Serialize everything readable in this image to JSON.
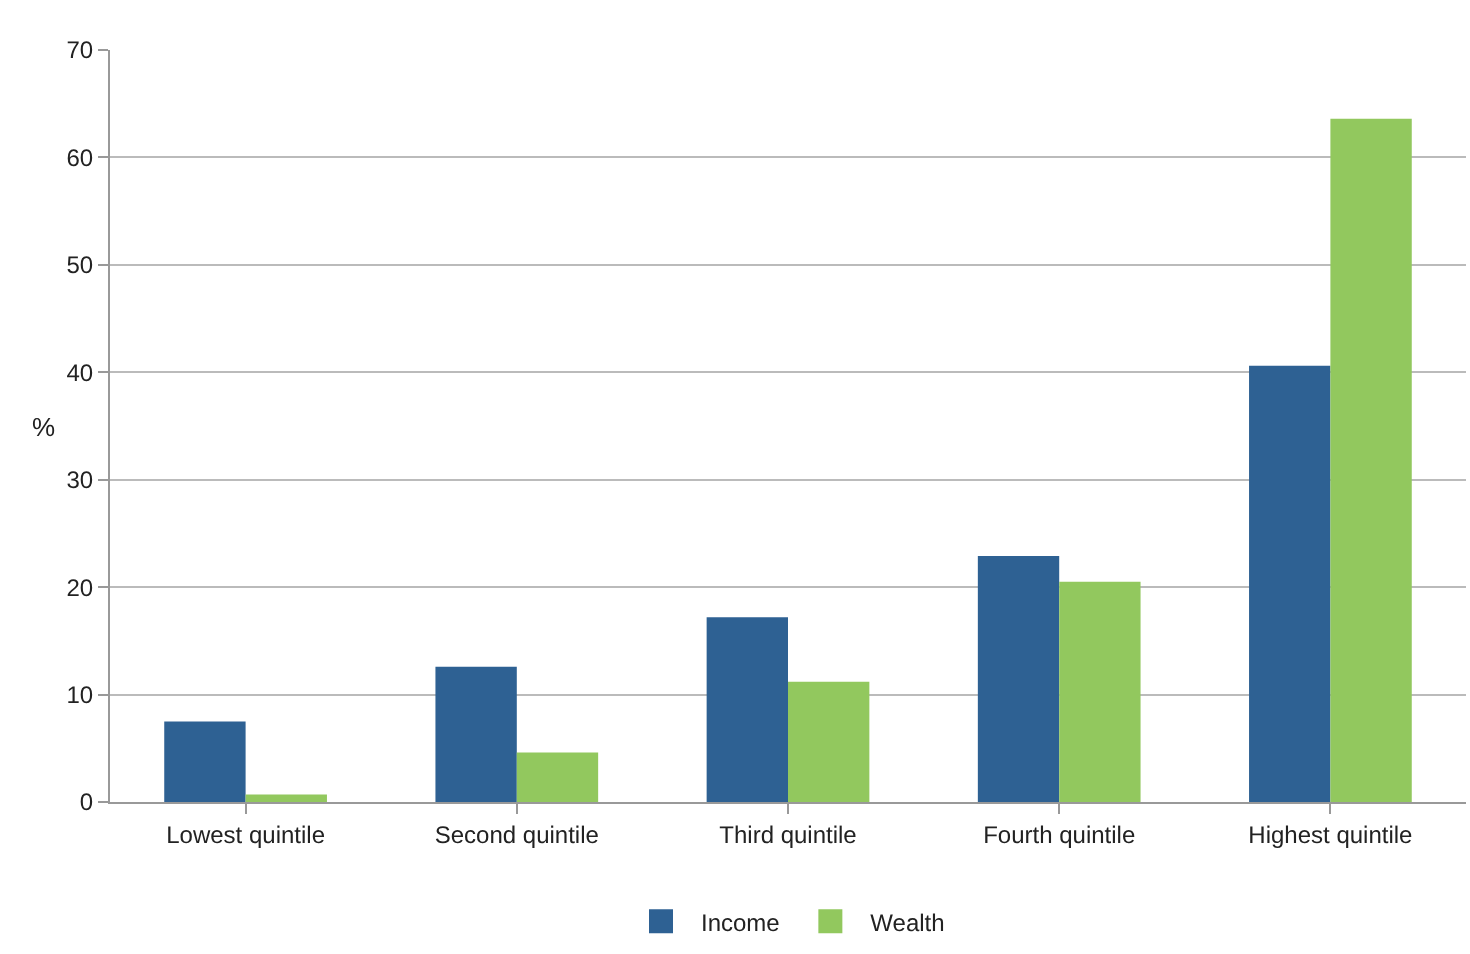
{
  "chart_data": {
    "type": "bar",
    "ylabel": "%",
    "categories": [
      "Lowest quintile",
      "Second quintile",
      "Third quintile",
      "Fourth quintile",
      "Highest quintile"
    ],
    "series": [
      {
        "name": "Income",
        "color": "#2e6193",
        "values": [
          7.5,
          12.6,
          17.2,
          22.9,
          40.6
        ]
      },
      {
        "name": "Wealth",
        "color": "#92c85e",
        "values": [
          0.7,
          4.6,
          11.2,
          20.5,
          63.6
        ]
      }
    ],
    "ylim": [
      0,
      70
    ],
    "yticks": [
      0,
      10,
      20,
      30,
      40,
      50,
      60,
      70
    ],
    "grid": "y",
    "legend": "bottom"
  }
}
